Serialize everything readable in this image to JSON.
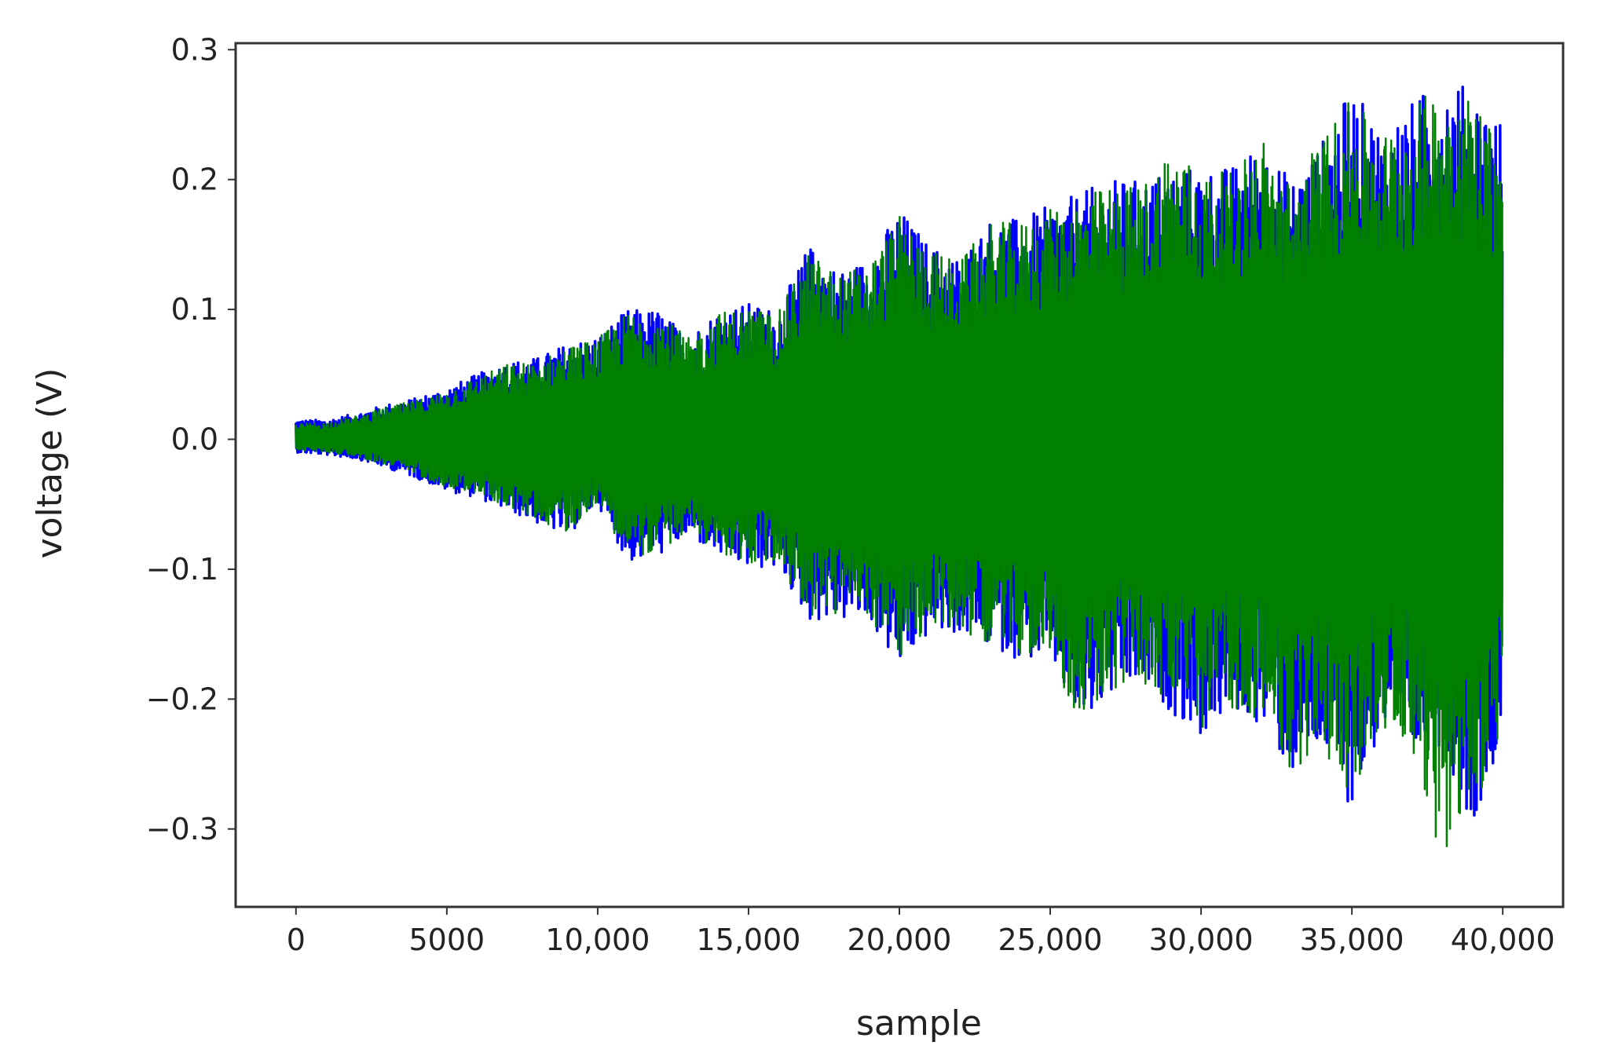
{
  "chart_data": {
    "type": "line",
    "title": "",
    "xlabel": "sample",
    "ylabel": "voltage (V)",
    "xlim": [
      -2000,
      42000
    ],
    "ylim": [
      -0.36,
      0.305
    ],
    "xticks": [
      0,
      5000,
      10000,
      15000,
      20000,
      25000,
      30000,
      35000,
      40000
    ],
    "xtick_labels": [
      "0",
      "5000",
      "10,000",
      "15,000",
      "20,000",
      "25,000",
      "30,000",
      "35,000",
      "40,000"
    ],
    "yticks": [
      0.3,
      0.2,
      0.1,
      0.0,
      -0.1,
      -0.2,
      -0.3
    ],
    "ytick_labels": [
      "0.3",
      "0.2",
      "0.1",
      "0.0",
      "−0.1",
      "−0.2",
      "−0.3"
    ],
    "grid": false,
    "legend": "none",
    "series": [
      {
        "color": "#0000ff",
        "envelope": {
          "x": [
            0,
            1000,
            2000,
            3000,
            4000,
            5000,
            6000,
            7000,
            8000,
            9000,
            10000,
            11000,
            12000,
            13000,
            14000,
            15000,
            16000,
            17000,
            18000,
            19000,
            20000,
            21000,
            22000,
            23000,
            24000,
            25000,
            26000,
            27000,
            28000,
            29000,
            30000,
            31000,
            32000,
            33000,
            34000,
            35000,
            36000,
            37000,
            38000,
            39000,
            40000
          ],
          "max": [
            0.015,
            0.015,
            0.02,
            0.027,
            0.032,
            0.04,
            0.05,
            0.06,
            0.063,
            0.074,
            0.08,
            0.1,
            0.1,
            0.08,
            0.1,
            0.105,
            0.1,
            0.15,
            0.13,
            0.14,
            0.178,
            0.15,
            0.14,
            0.17,
            0.17,
            0.18,
            0.19,
            0.2,
            0.2,
            0.21,
            0.21,
            0.21,
            0.23,
            0.2,
            0.23,
            0.27,
            0.24,
            0.26,
            0.28,
            0.27,
            0.245
          ],
          "min": [
            -0.01,
            -0.012,
            -0.015,
            -0.022,
            -0.03,
            -0.04,
            -0.045,
            -0.055,
            -0.065,
            -0.075,
            -0.05,
            -0.095,
            -0.09,
            -0.075,
            -0.09,
            -0.1,
            -0.1,
            -0.14,
            -0.14,
            -0.14,
            -0.178,
            -0.15,
            -0.15,
            -0.16,
            -0.17,
            -0.17,
            -0.225,
            -0.2,
            -0.19,
            -0.21,
            -0.23,
            -0.21,
            -0.22,
            -0.26,
            -0.24,
            -0.285,
            -0.225,
            -0.245,
            -0.235,
            -0.3,
            -0.225
          ]
        }
      },
      {
        "color": "#008000",
        "envelope": {
          "x": [
            0,
            1000,
            2000,
            3000,
            4000,
            5000,
            6000,
            7000,
            8000,
            9000,
            10000,
            11000,
            12000,
            13000,
            14000,
            15000,
            16000,
            17000,
            18000,
            19000,
            20000,
            21000,
            22000,
            23000,
            24000,
            25000,
            26000,
            27000,
            28000,
            29000,
            30000,
            31000,
            32000,
            33000,
            34000,
            35000,
            36000,
            37000,
            38000,
            39000,
            40000
          ],
          "max": [
            0.012,
            0.013,
            0.018,
            0.025,
            0.03,
            0.038,
            0.048,
            0.058,
            0.06,
            0.072,
            0.078,
            0.098,
            0.098,
            0.078,
            0.098,
            0.102,
            0.098,
            0.145,
            0.127,
            0.137,
            0.172,
            0.147,
            0.137,
            0.167,
            0.167,
            0.177,
            0.187,
            0.196,
            0.196,
            0.23,
            0.206,
            0.206,
            0.236,
            0.196,
            0.235,
            0.262,
            0.236,
            0.256,
            0.278,
            0.265,
            0.24
          ],
          "min": [
            -0.008,
            -0.01,
            -0.013,
            -0.02,
            -0.027,
            -0.037,
            -0.042,
            -0.052,
            -0.062,
            -0.072,
            -0.048,
            -0.092,
            -0.087,
            -0.072,
            -0.087,
            -0.097,
            -0.097,
            -0.137,
            -0.137,
            -0.137,
            -0.17,
            -0.147,
            -0.147,
            -0.157,
            -0.167,
            -0.167,
            -0.22,
            -0.197,
            -0.187,
            -0.207,
            -0.225,
            -0.207,
            -0.217,
            -0.26,
            -0.236,
            -0.28,
            -0.22,
            -0.24,
            -0.325,
            -0.298,
            -0.22
          ]
        }
      }
    ]
  }
}
